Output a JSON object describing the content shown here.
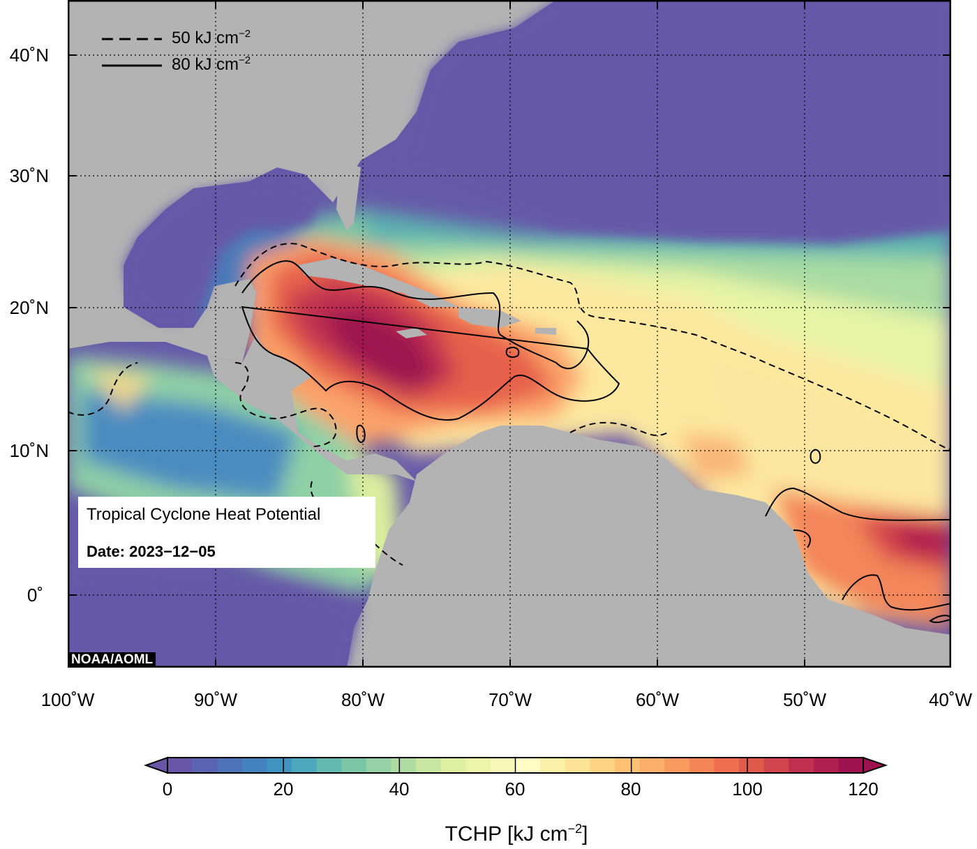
{
  "map": {
    "lat_labels": [
      "40˚N",
      "30˚N",
      "20˚N",
      "10˚N",
      "0˚"
    ],
    "lon_labels": [
      "100˚W",
      "90˚W",
      "80˚W",
      "70˚W",
      "60˚W",
      "50˚W",
      "40˚W"
    ],
    "contour_legend": {
      "dashed_label": "50 kJ cm",
      "solid_label": "80 kJ cm",
      "exponent": "−2"
    },
    "info_box": {
      "title": "Tropical Cyclone Heat Potential",
      "date": "Date: 2023−12−05"
    },
    "credit": "NOAA/AOML",
    "colors": {
      "land": "#b3b3b3",
      "cold_ocean": "#6659a8",
      "warmest": "#a50f4b"
    }
  },
  "colorbar": {
    "ticks": [
      "0",
      "20",
      "40",
      "60",
      "80",
      "100",
      "120"
    ],
    "label": "TCHP [kJ cm",
    "label_exp": "−2",
    "label_close": "]",
    "colors": [
      "#6a56a6",
      "#5a63b0",
      "#4d72b7",
      "#4383bd",
      "#3f95c0",
      "#4ea8bd",
      "#63b8b0",
      "#7bc6a6",
      "#95d1a4",
      "#afdca2",
      "#c7e69f",
      "#ddf0a2",
      "#ecf5ab",
      "#f8f9b9",
      "#fefbc3",
      "#fdf0a8",
      "#fde395",
      "#fdd484",
      "#fdc276",
      "#fcaf6a",
      "#f99b5e",
      "#f48556",
      "#ec6e4f",
      "#e05a4b",
      "#d2444c",
      "#c2304f",
      "#b01f50",
      "#9e1250"
    ]
  }
}
